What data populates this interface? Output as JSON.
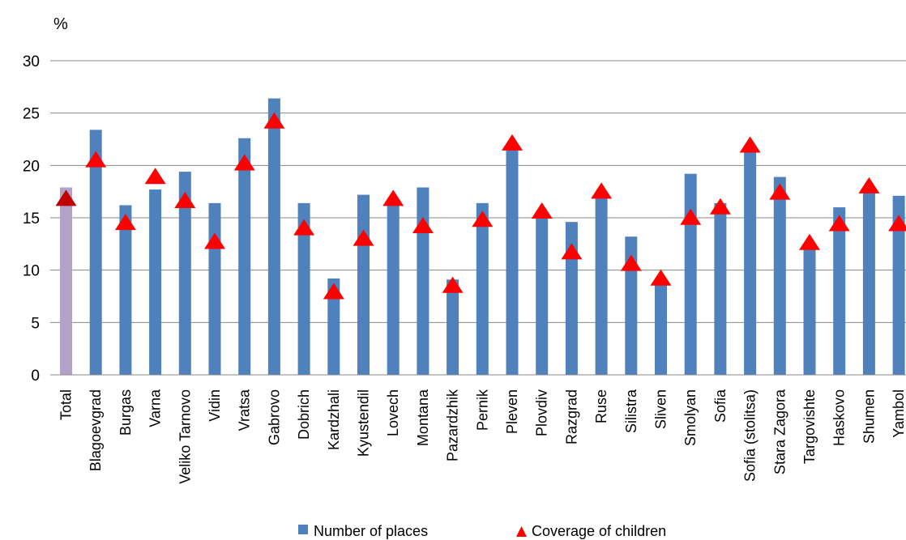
{
  "chart_data": {
    "type": "bar",
    "y_unit_label": "%",
    "ylim": [
      0,
      30
    ],
    "y_ticks": [
      0,
      5,
      10,
      15,
      20,
      25,
      30
    ],
    "grid": true,
    "legend_position": "bottom",
    "categories": [
      "Total",
      "Blagoevgrad",
      "Burgas",
      "Varna",
      "Veliko Tarnovo",
      "Vidin",
      "Vratsa",
      "Gabrovo",
      "Dobrich",
      "Kardzhali",
      "Kyustendil",
      "Lovech",
      "Montana",
      "Pazardzhik",
      "Pernik",
      "Pleven",
      "Plovdiv",
      "Razgrad",
      "Ruse",
      "Silistra",
      "Sliven",
      "Smolyan",
      "Sofia",
      "Sofia (stolitsa)",
      "Stara Zagora",
      "Targovishte",
      "Haskovo",
      "Shumen",
      "Yambol"
    ],
    "series": [
      {
        "name": "Number of places",
        "mark": "bar",
        "color": "#4f81bd",
        "highlight_color": "#b3a2c7",
        "values": [
          17.9,
          23.4,
          16.2,
          17.7,
          19.4,
          16.4,
          22.6,
          26.4,
          16.4,
          9.2,
          17.2,
          16.4,
          17.9,
          9.1,
          16.4,
          21.9,
          15.3,
          14.6,
          17.5,
          13.2,
          9.2,
          19.2,
          16.4,
          21.6,
          18.9,
          12.2,
          16.0,
          17.5,
          17.1
        ]
      },
      {
        "name": "Coverage of children",
        "mark": "triangle",
        "color": "#ff0000",
        "highlight_color": "#c00000",
        "values": [
          16.9,
          20.6,
          14.6,
          19.0,
          16.7,
          12.8,
          20.3,
          24.3,
          14.1,
          8.0,
          13.1,
          16.9,
          14.3,
          8.6,
          14.9,
          22.2,
          15.7,
          11.8,
          17.6,
          10.7,
          9.3,
          15.1,
          16.1,
          22.0,
          17.5,
          12.7,
          14.5,
          18.1,
          14.5
        ]
      }
    ]
  }
}
